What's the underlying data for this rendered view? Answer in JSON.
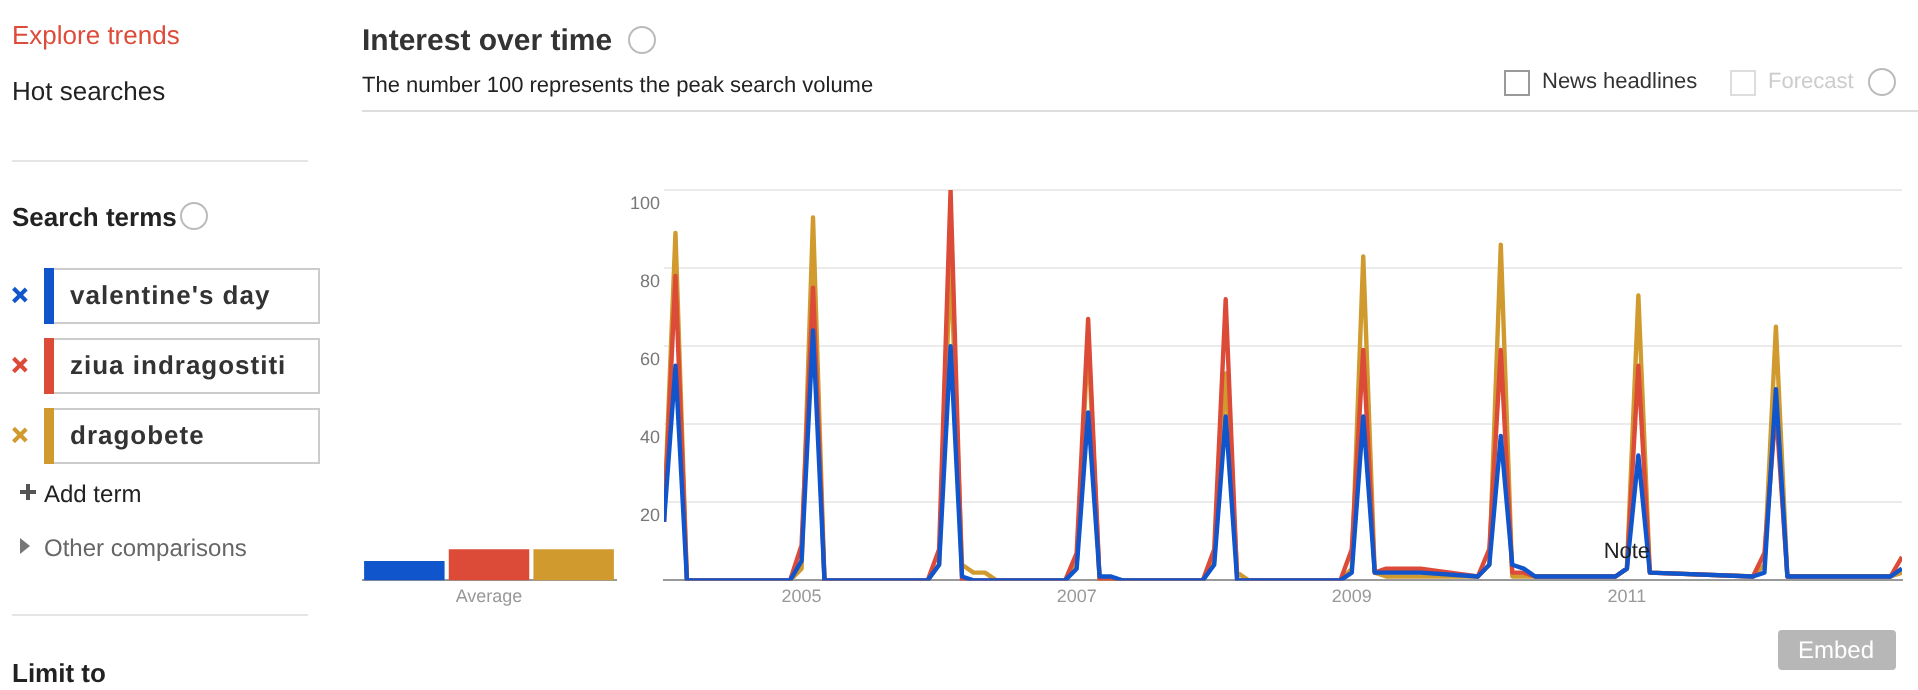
{
  "chart_data": [
    {
      "type": "bar",
      "title": "Interest over time",
      "subtitle": "The number 100 represents the peak search volume",
      "categories": [
        null,
        "Average",
        null
      ],
      "ylim": [
        0,
        100
      ],
      "tick_labels": "x",
      "legend": false,
      "values": [
        5,
        8,
        8
      ],
      "colors": [
        "#1155cc",
        "#dc4a38",
        "#d09a2f"
      ]
    },
    {
      "type": "line",
      "legend": "left",
      "grid": "y",
      "marker": "none",
      "line_style": "solid",
      "xlim": [
        "2004-01",
        "2013-01"
      ],
      "xticks": [
        "2005",
        "2007",
        "2009",
        "2011"
      ],
      "ylim": [
        0,
        100
      ],
      "yticks": [
        {
          "value": 0,
          "label": null
        },
        20,
        40,
        60,
        80,
        100
      ],
      "x": [
        "2004-01",
        "2004-02",
        "2004-03",
        "2004-12",
        "2005-01",
        "2005-02",
        "2005-03",
        "2005-12",
        "2006-01",
        "2006-02",
        "2006-03",
        "2006-04",
        "2006-05",
        "2006-06",
        "2006-12",
        "2007-01",
        "2007-02",
        "2007-03",
        "2007-04",
        "2007-05",
        "2007-12",
        "2008-01",
        "2008-02",
        "2008-03",
        "2008-04",
        "2008-12",
        "2009-01",
        "2009-02",
        "2009-03",
        "2009-04",
        "2009-07",
        "2009-12",
        "2010-01",
        "2010-02",
        "2010-03",
        "2010-04",
        "2010-05",
        "2010-12",
        "2011-01",
        "2011-02",
        "2011-03",
        "2011-12",
        "2012-01",
        "2012-02",
        "2012-03",
        "2012-12",
        "2013-01"
      ],
      "series": [
        {
          "name": "valentine's day",
          "color": "#1155cc",
          "values": [
            15,
            55,
            0,
            0,
            5,
            64,
            0,
            0,
            4,
            60,
            1,
            0,
            0,
            0,
            0,
            3,
            43,
            1,
            1,
            0,
            0,
            4,
            42,
            0,
            0,
            0,
            2,
            42,
            2,
            2,
            2,
            1,
            4,
            37,
            4,
            3,
            1,
            1,
            3,
            32,
            2,
            1,
            2,
            49,
            1,
            1,
            3
          ]
        },
        {
          "name": "ziua indragostiti",
          "color": "#dc4a38",
          "values": [
            15,
            78,
            0,
            0,
            9,
            75,
            0,
            0,
            8,
            100,
            0,
            0,
            0,
            0,
            0,
            7,
            67,
            0,
            0,
            0,
            0,
            8,
            72,
            0,
            0,
            0,
            8,
            59,
            2,
            3,
            3,
            1,
            8,
            59,
            2,
            2,
            1,
            1,
            3,
            55,
            2,
            1,
            7,
            44,
            1,
            1,
            6
          ]
        },
        {
          "name": "dragobete",
          "color": "#d09a2f",
          "values": [
            15,
            89,
            0,
            0,
            3,
            93,
            0,
            0,
            4,
            82,
            4,
            2,
            2,
            0,
            0,
            4,
            62,
            0,
            0,
            0,
            0,
            5,
            53,
            2,
            0,
            0,
            3,
            83,
            2,
            1,
            1,
            1,
            4,
            86,
            1,
            1,
            1,
            1,
            3,
            73,
            2,
            1,
            4,
            65,
            1,
            1,
            2
          ]
        }
      ],
      "annotations": [
        "Explore trends",
        "Hot searches",
        "Search terms",
        "Add term",
        "Other comparisons",
        "Limit to",
        "News headlines",
        "Forecast",
        "Embed",
        {
          "text": "Note",
          "x": "2011-01",
          "y": 2
        }
      ]
    }
  ]
}
